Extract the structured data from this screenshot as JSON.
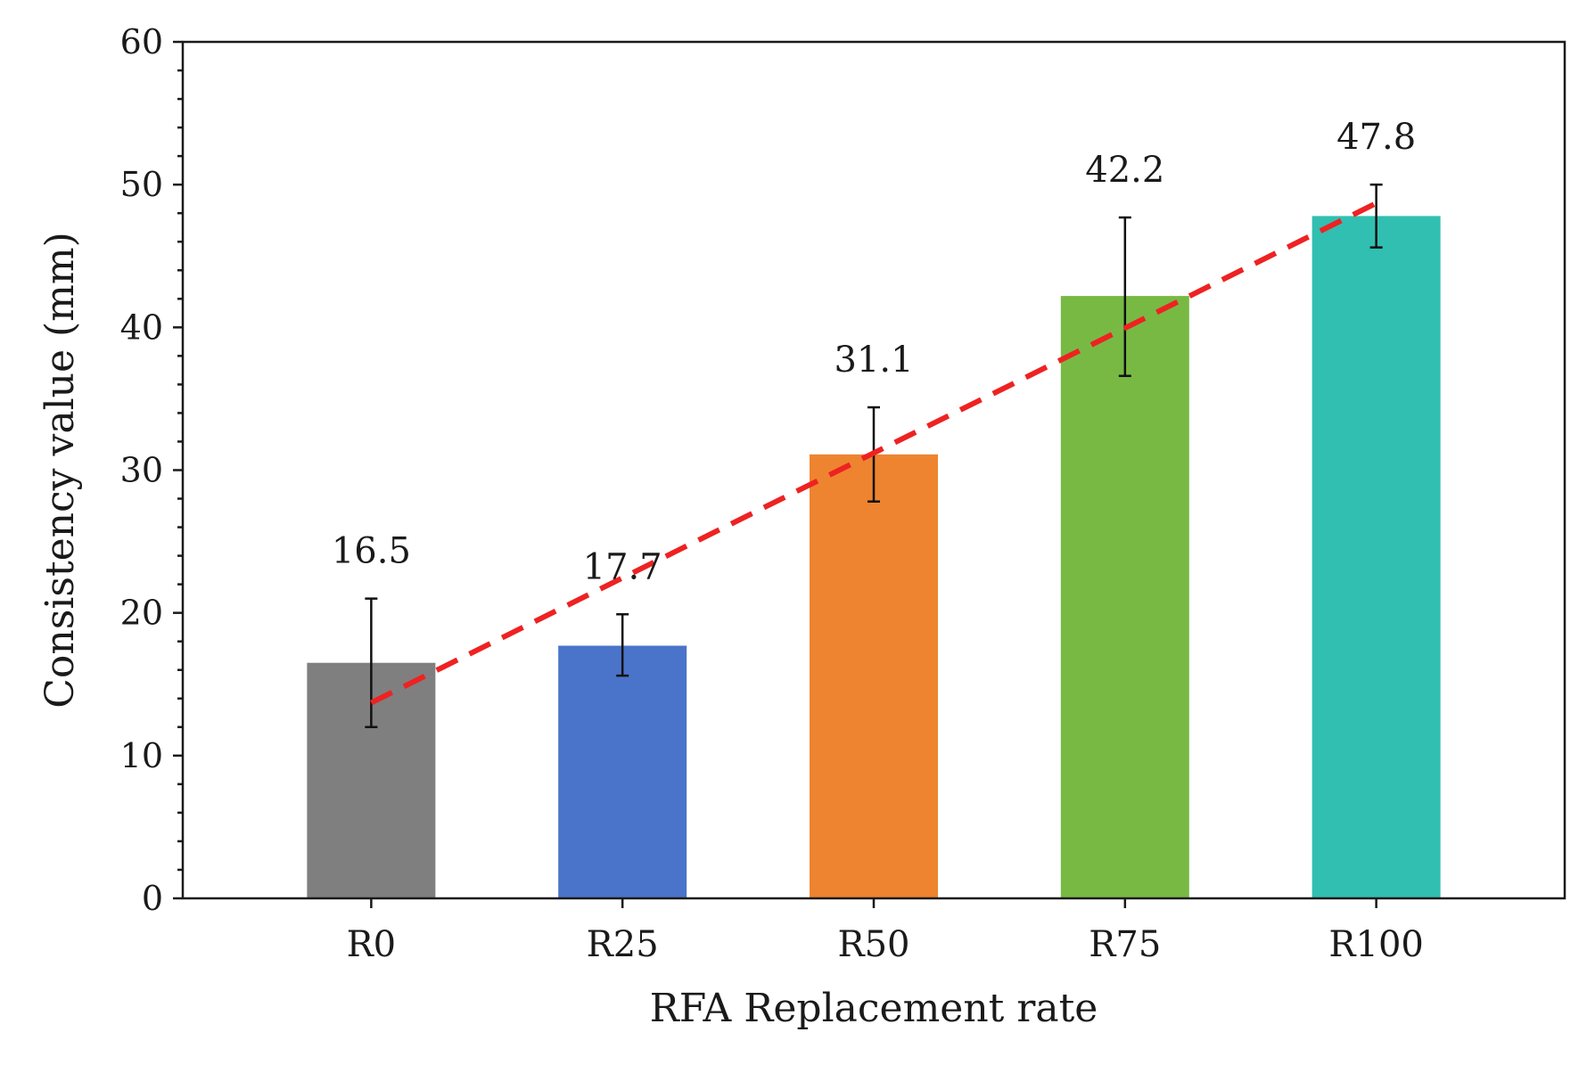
{
  "chart_data": {
    "type": "bar",
    "title": "",
    "xlabel": "RFA Replacement rate",
    "ylabel": "Consistency value (mm)",
    "ylim": [
      0,
      60
    ],
    "yticks": [
      0,
      10,
      20,
      30,
      40,
      50,
      60
    ],
    "categories": [
      "R0",
      "R25",
      "R50",
      "R75",
      "R100"
    ],
    "values": [
      16.5,
      17.7,
      31.1,
      42.2,
      47.8
    ],
    "value_labels": [
      "16.5",
      "17.7",
      "31.1",
      "42.2",
      "47.8"
    ],
    "error_bars": [
      {
        "low": 12.0,
        "high": 21.0
      },
      {
        "low": 15.6,
        "high": 19.9
      },
      {
        "low": 27.8,
        "high": 34.4
      },
      {
        "low": 36.6,
        "high": 47.7
      },
      {
        "low": 45.6,
        "high": 50.0
      }
    ],
    "bar_colors": [
      "#7f7f7f",
      "#4a74c9",
      "#ee8430",
      "#78b944",
      "#31bfb1"
    ],
    "trend_line": {
      "style": "dashed",
      "color": "#ee2222",
      "start": {
        "x": "R0",
        "y": 13.7
      },
      "end": {
        "x": "R100",
        "y": 48.7
      }
    },
    "grid": false,
    "legend": "none"
  }
}
